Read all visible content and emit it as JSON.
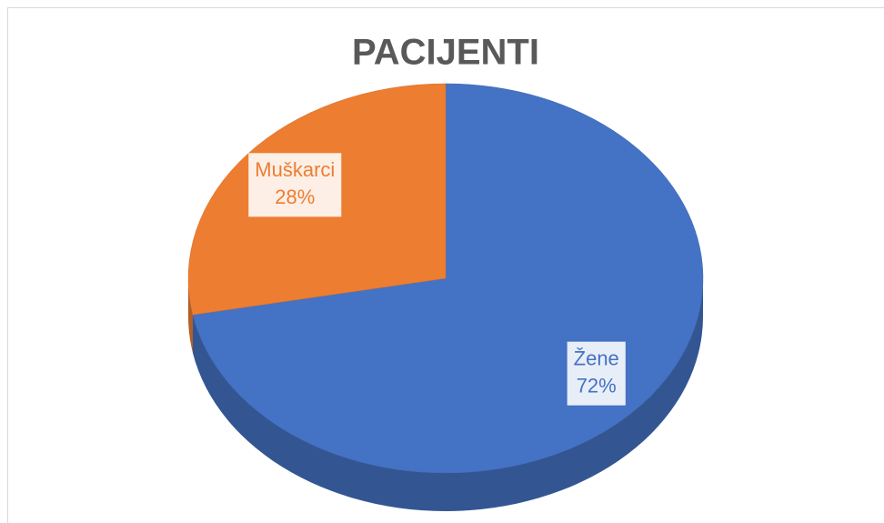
{
  "chart_data": {
    "type": "pie",
    "title": "PACIJENTI",
    "categories": [
      "Žene",
      "Muškarci"
    ],
    "values": [
      72,
      28
    ],
    "value_labels": [
      "72%",
      "28%"
    ],
    "colors": [
      "#4472c4",
      "#ed7d31"
    ]
  }
}
